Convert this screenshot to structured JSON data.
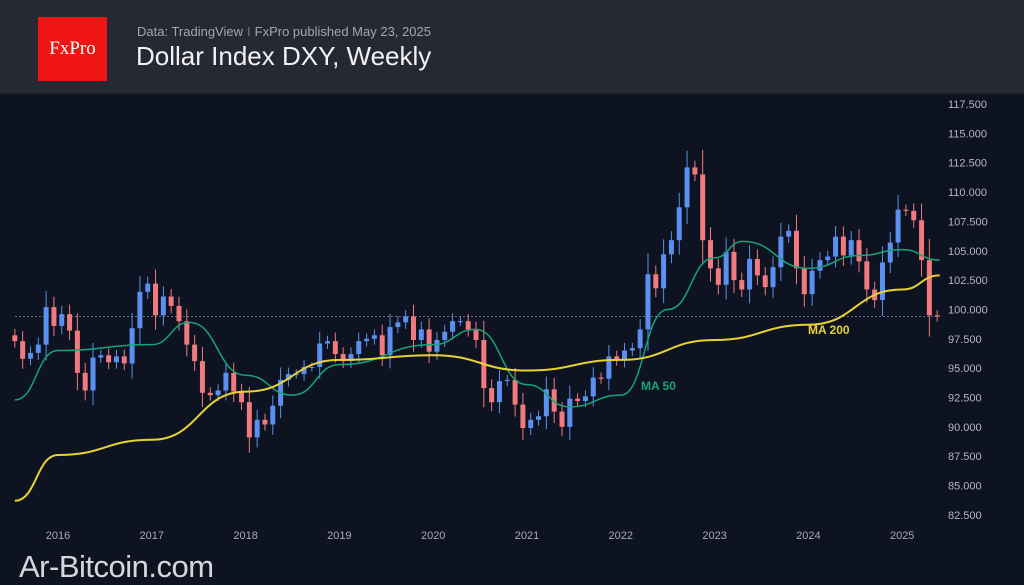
{
  "header": {
    "logo_text": "FxPro",
    "source": "Data: TradingView",
    "separator": "I",
    "published": "FxPro published May 23, 2025",
    "title": "Dollar Index DXY, Weekly"
  },
  "watermark": "Ar-Bitcoin.com",
  "chart_data": {
    "type": "candlestick",
    "title": "Dollar Index DXY, Weekly",
    "x_tick_labels": [
      "2016",
      "2017",
      "2018",
      "2019",
      "2020",
      "2021",
      "2022",
      "2023",
      "2024",
      "2025"
    ],
    "y_tick_labels": [
      "117.500",
      "115.000",
      "112.500",
      "110.000",
      "107.500",
      "105.000",
      "102.500",
      "100.000",
      "97.500",
      "95.000",
      "92.500",
      "90.000",
      "87.500",
      "85.000",
      "82.500"
    ],
    "ylim": [
      82.5,
      117.5
    ],
    "xlim": [
      2015.54,
      2025.42
    ],
    "grid": false,
    "colors": {
      "up": "#5b8ff0",
      "down": "#f07a80",
      "ma50": "#16a37a",
      "ma200": "#e6d234",
      "last_line": "#6b6f7c"
    },
    "last_price": 99.4,
    "closes_start": 2015.54,
    "closes_step_years": 0.08333,
    "closes": [
      97.3,
      95.8,
      96.3,
      97.0,
      100.2,
      98.6,
      99.6,
      98.2,
      94.6,
      93.1,
      95.9,
      96.1,
      95.5,
      96.0,
      95.4,
      98.4,
      101.5,
      102.2,
      99.5,
      101.1,
      100.3,
      99.0,
      97.0,
      95.6,
      92.9,
      92.7,
      93.1,
      94.6,
      93.0,
      92.1,
      89.1,
      90.6,
      90.2,
      91.8,
      94.0,
      94.5,
      94.5,
      95.1,
      95.1,
      97.1,
      97.3,
      96.2,
      95.6,
      96.2,
      97.3,
      97.5,
      97.8,
      96.1,
      98.5,
      98.9,
      99.4,
      97.4,
      98.3,
      96.4,
      97.4,
      98.1,
      99.0,
      99.0,
      98.3,
      97.4,
      93.3,
      92.1,
      93.9,
      94.0,
      91.9,
      89.9,
      90.6,
      90.9,
      93.2,
      91.3,
      90.0,
      92.4,
      92.2,
      92.6,
      94.2,
      94.1,
      96.0,
      95.7,
      96.5,
      96.7,
      98.3,
      103.0,
      101.8,
      104.7,
      105.9,
      108.7,
      112.1,
      111.5,
      105.9,
      103.5,
      102.1,
      104.9,
      102.5,
      101.7,
      104.3,
      102.9,
      101.9,
      103.6,
      106.2,
      106.7,
      103.5,
      101.3,
      103.3,
      104.2,
      104.5,
      106.2,
      104.6,
      105.9,
      104.1,
      101.7,
      100.8,
      104.0,
      105.7,
      108.5,
      108.4,
      107.6,
      104.2,
      99.5,
      99.4
    ],
    "series": [
      {
        "name": "MA 50",
        "x": [
          2015.54,
          2016,
          2017,
          2017.4,
          2018,
          2018.5,
          2019,
          2020,
          2020.45,
          2021,
          2021.45,
          2022,
          2022.5,
          2023,
          2023.3,
          2024,
          2024.55,
          2025,
          2025.4
        ],
        "values": [
          92.3,
          96.5,
          97,
          98.9,
          94.4,
          92.7,
          95.3,
          97,
          98.3,
          93.6,
          91.7,
          92.7,
          100,
          104.4,
          105.8,
          103.5,
          104.6,
          105.1,
          104.2
        ]
      },
      {
        "name": "MA 200",
        "x": [
          2015.54,
          2016,
          2017,
          2018,
          2019,
          2020,
          2021,
          2022,
          2023,
          2024,
          2025,
          2025.4
        ],
        "values": [
          83.7,
          87.6,
          88.9,
          93,
          95.7,
          96.1,
          94.8,
          95.7,
          97.4,
          98.7,
          101.7,
          102.9
        ]
      }
    ]
  }
}
